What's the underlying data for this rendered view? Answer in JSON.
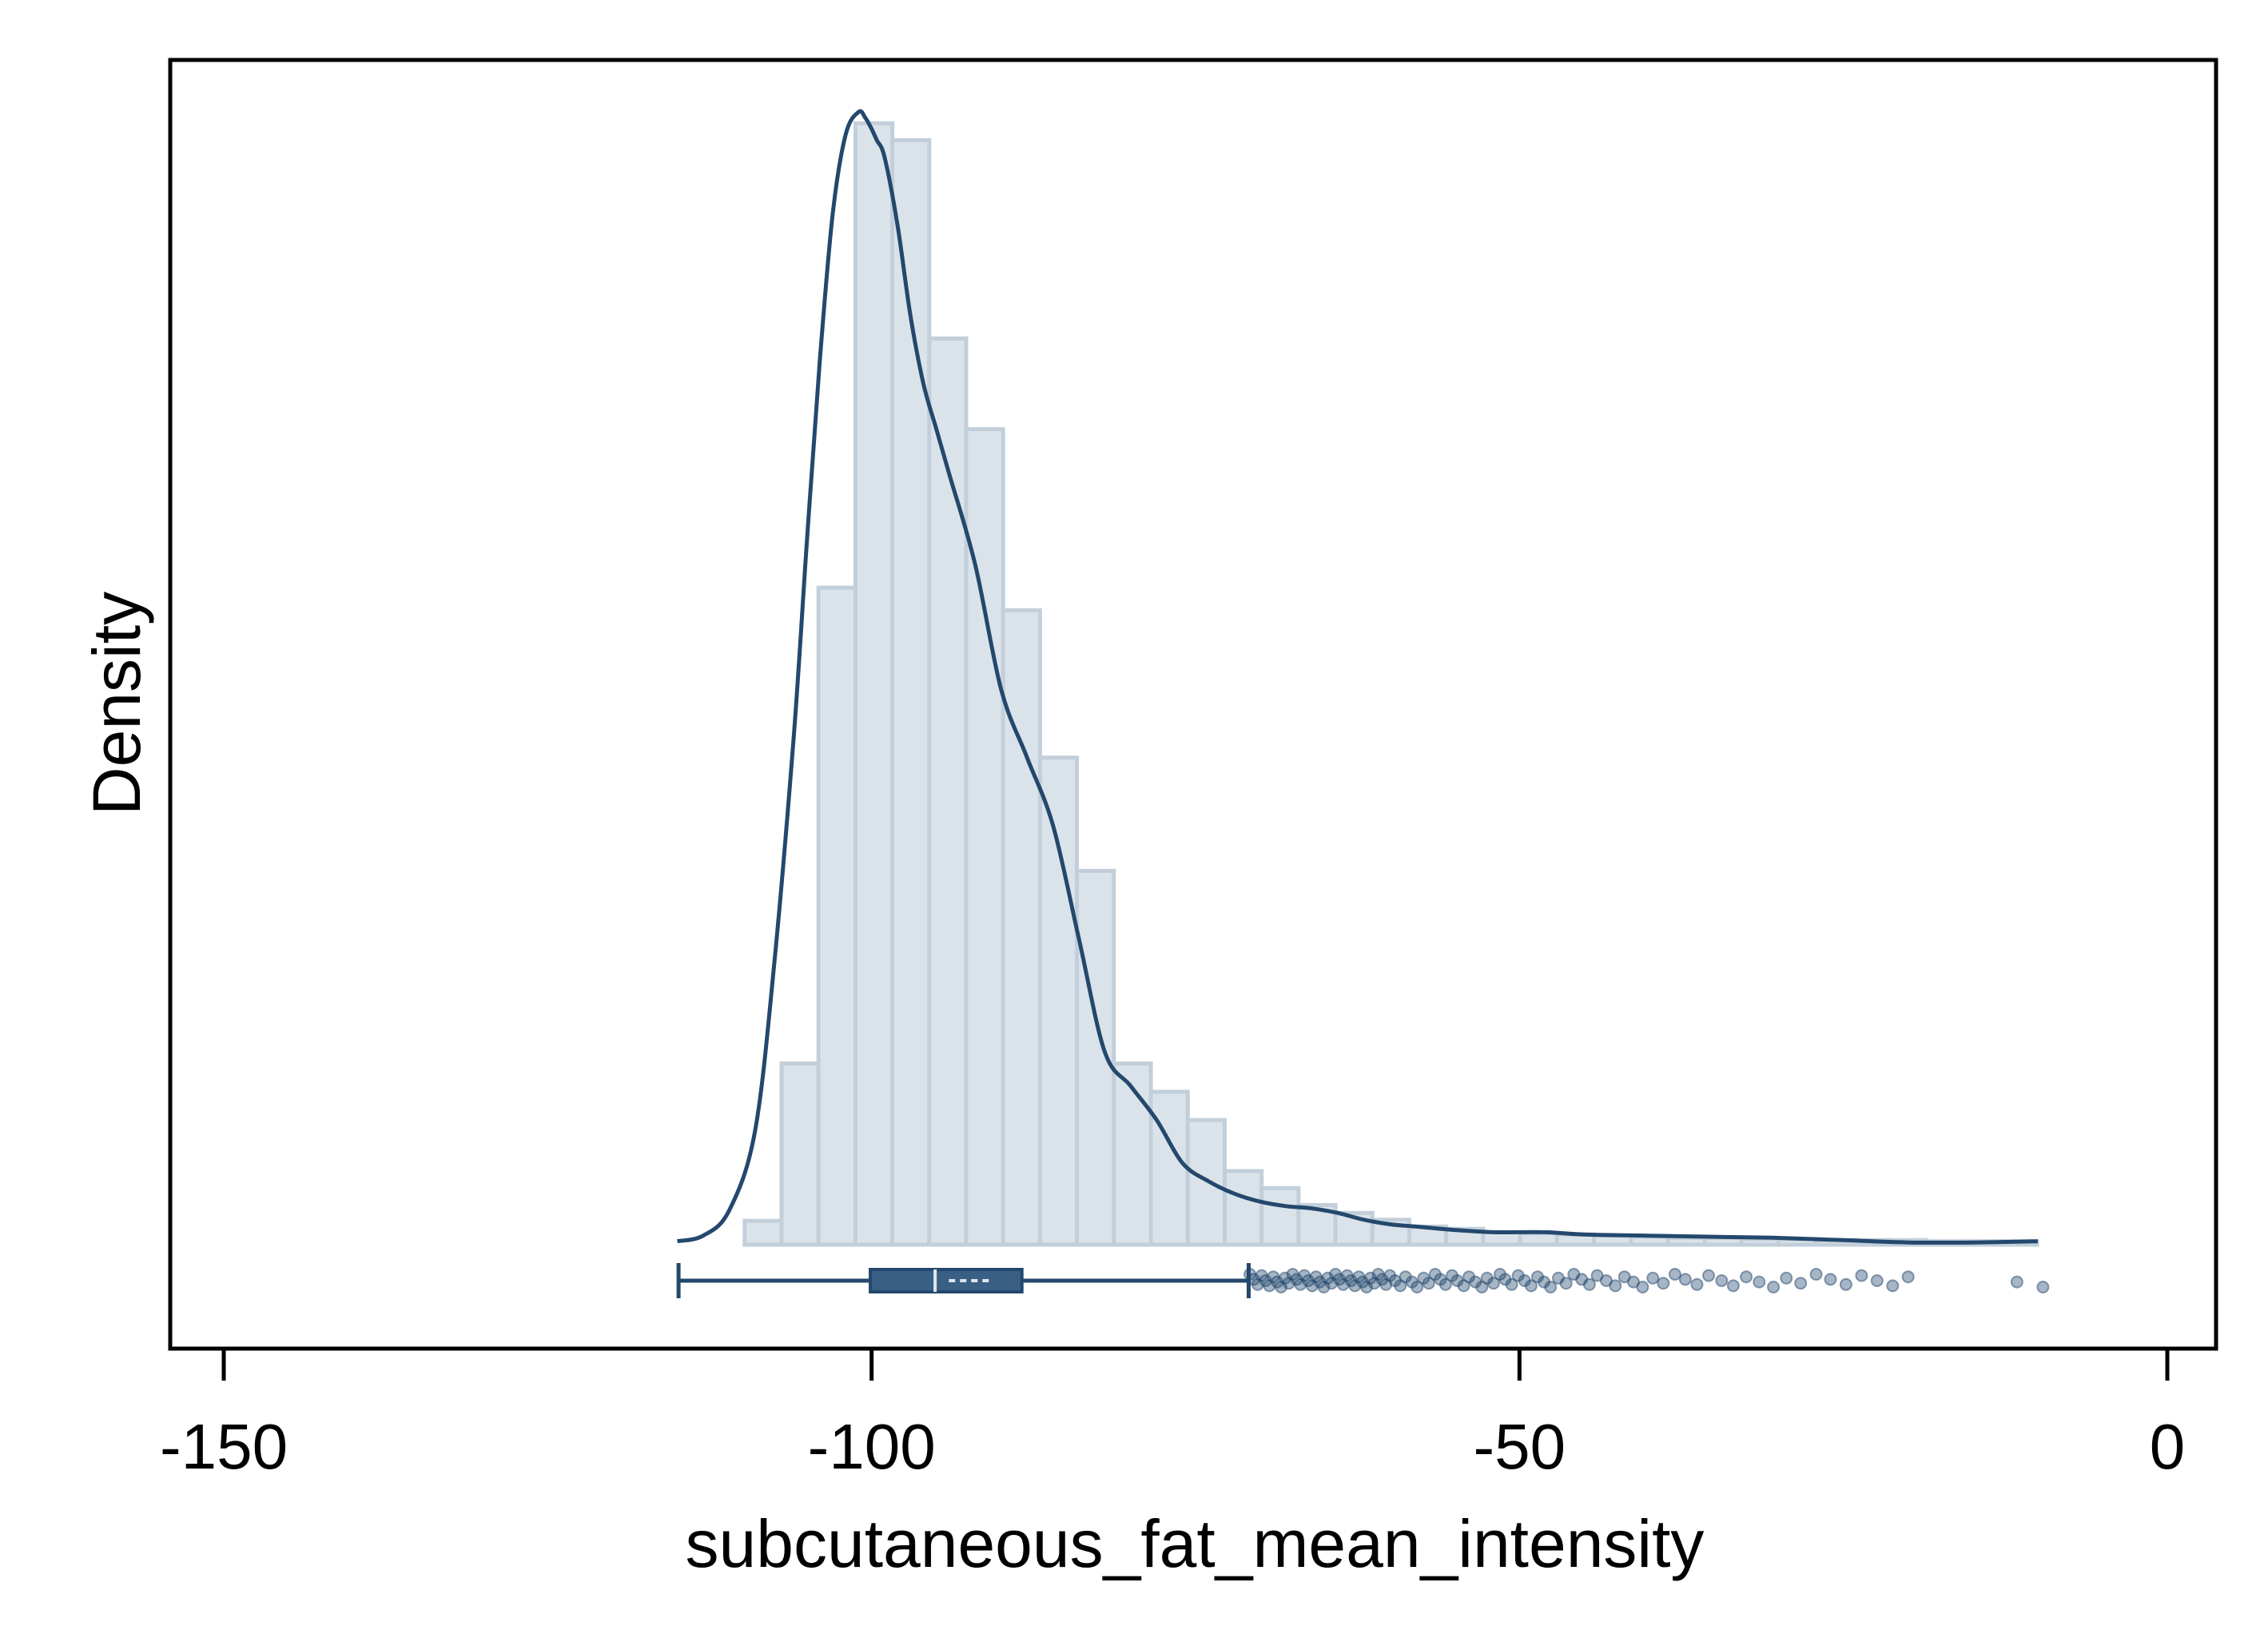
{
  "chart_data": {
    "type": "histogram",
    "xlabel": "subcutaneous_fat_mean_intensity",
    "ylabel": "Density",
    "xlim": [
      -158,
      4
    ],
    "xticks": [
      -150,
      -100,
      -50,
      0
    ],
    "xtick_labels": [
      "-150",
      "-100",
      "-50",
      "0"
    ],
    "y_ticks_shown": false,
    "colors": {
      "bar_fill": "#dbe3ea",
      "bar_stroke": "#c2cfda",
      "line": "#24486d",
      "box_fill": "#3a5f84",
      "outlier": "#24486d"
    },
    "histogram": {
      "bin_width": 2.85,
      "bins_start": -109.8,
      "relative_density": [
        0.021,
        0.16,
        0.58,
        0.99,
        0.975,
        0.8,
        0.72,
        0.56,
        0.43,
        0.33,
        0.16,
        0.135,
        0.11,
        0.065,
        0.05,
        0.035,
        0.028,
        0.022,
        0.016,
        0.014,
        0.011,
        0.01,
        0.009,
        0.008,
        0.007,
        0.006,
        0.006,
        0.005,
        0.005,
        0.004,
        0.004,
        0.004,
        0.003,
        0.003,
        0.003
      ]
    },
    "kde": {
      "x": [
        -115,
        -113,
        -111,
        -109,
        -107.5,
        -106,
        -105,
        -104,
        -103,
        -102,
        -101,
        -100.5,
        -100,
        -99.6,
        -99,
        -98,
        -97,
        -96,
        -95,
        -94,
        -92,
        -90,
        -88,
        -86,
        -84,
        -82,
        -80,
        -78,
        -76,
        -74,
        -72,
        -70,
        -68,
        -66,
        -64,
        -62,
        -60,
        -58,
        -55,
        -52,
        -48,
        -45,
        -40,
        -35,
        -30,
        -25,
        -20,
        -15,
        -10
      ],
      "y": [
        0.003,
        0.008,
        0.03,
        0.1,
        0.25,
        0.45,
        0.62,
        0.78,
        0.91,
        0.98,
        1.0,
        0.995,
        0.985,
        0.975,
        0.96,
        0.9,
        0.82,
        0.76,
        0.72,
        0.68,
        0.6,
        0.49,
        0.43,
        0.37,
        0.27,
        0.17,
        0.14,
        0.11,
        0.072,
        0.056,
        0.045,
        0.038,
        0.034,
        0.032,
        0.028,
        0.022,
        0.018,
        0.016,
        0.013,
        0.011,
        0.011,
        0.009,
        0.008,
        0.007,
        0.006,
        0.004,
        0.002,
        0.002,
        0.003
      ]
    },
    "boxplot": {
      "whisker_low": -114.9,
      "q1": -100.1,
      "median": -95.1,
      "mean": -92.5,
      "q3": -88.4,
      "whisker_high": -70.9
    },
    "outliers_x": [
      -70.8,
      -70.5,
      -70.2,
      -69.9,
      -69.6,
      -69.3,
      -69.0,
      -68.7,
      -68.4,
      -68.1,
      -67.8,
      -67.5,
      -67.2,
      -66.9,
      -66.6,
      -66.3,
      -66.0,
      -65.7,
      -65.4,
      -65.1,
      -64.8,
      -64.5,
      -64.2,
      -63.9,
      -63.6,
      -63.3,
      -63.0,
      -62.7,
      -62.4,
      -62.1,
      -61.8,
      -61.5,
      -61.2,
      -60.9,
      -60.6,
      -60.3,
      -60.0,
      -59.6,
      -59.2,
      -58.8,
      -58.3,
      -57.9,
      -57.4,
      -57.0,
      -56.5,
      -56.1,
      -55.7,
      -55.2,
      -54.8,
      -54.3,
      -53.9,
      -53.4,
      -52.9,
      -52.5,
      -52.0,
      -51.5,
      -51.1,
      -50.6,
      -50.1,
      -49.6,
      -49.1,
      -48.6,
      -48.1,
      -47.6,
      -47.0,
      -46.4,
      -45.8,
      -45.2,
      -44.6,
      -44.0,
      -43.3,
      -42.6,
      -41.9,
      -41.2,
      -40.5,
      -39.7,
      -38.9,
      -38.0,
      -37.2,
      -36.3,
      -35.4,
      -34.4,
      -33.5,
      -32.5,
      -31.5,
      -30.4,
      -29.4,
      -28.3,
      -27.1,
      -26.0,
      -24.8,
      -23.6,
      -22.4,
      -21.2,
      -20.0,
      -11.6,
      -9.6
    ]
  }
}
